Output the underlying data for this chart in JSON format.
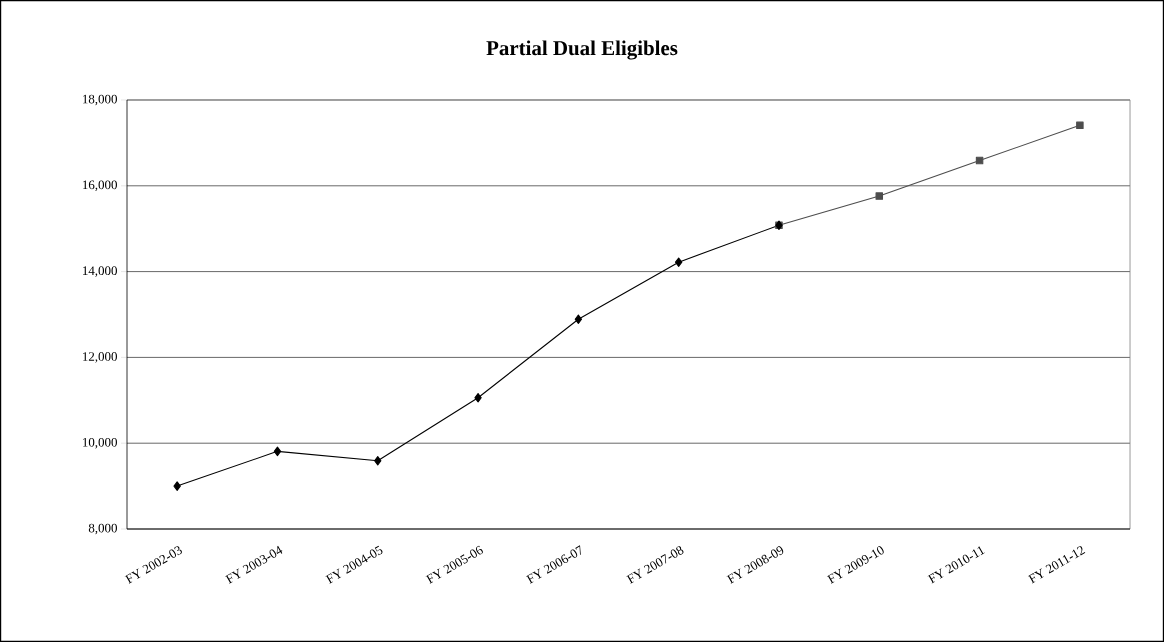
{
  "chart_data": {
    "type": "line",
    "title": "Partial Dual Eligibles",
    "categories": [
      "FY 2002-03",
      "FY 2003-04",
      "FY 2004-05",
      "FY 2005-06",
      "FY 2006-07",
      "FY 2007-08",
      "FY 2008-09",
      "FY 2009-10",
      "FY 2010-11",
      "FY 2011-12"
    ],
    "series": [
      {
        "color": "#4d4d4d",
        "marker": "square",
        "values": [
          null,
          null,
          null,
          null,
          null,
          null,
          15080,
          15760,
          16590,
          17410
        ]
      },
      {
        "color": "#000000",
        "marker": "diamond",
        "values": [
          9000,
          9810,
          9590,
          11060,
          12890,
          14220,
          15080,
          null,
          null,
          null
        ]
      }
    ],
    "ylim": [
      8000,
      18000
    ],
    "yticks": [
      {
        "value": 8000,
        "label": "8,000"
      },
      {
        "value": 10000,
        "label": "10,000"
      },
      {
        "value": 12000,
        "label": "12,000"
      },
      {
        "value": 14000,
        "label": "14,000"
      },
      {
        "value": 16000,
        "label": "16,000"
      },
      {
        "value": 18000,
        "label": "18,000"
      }
    ],
    "grid": "y"
  }
}
